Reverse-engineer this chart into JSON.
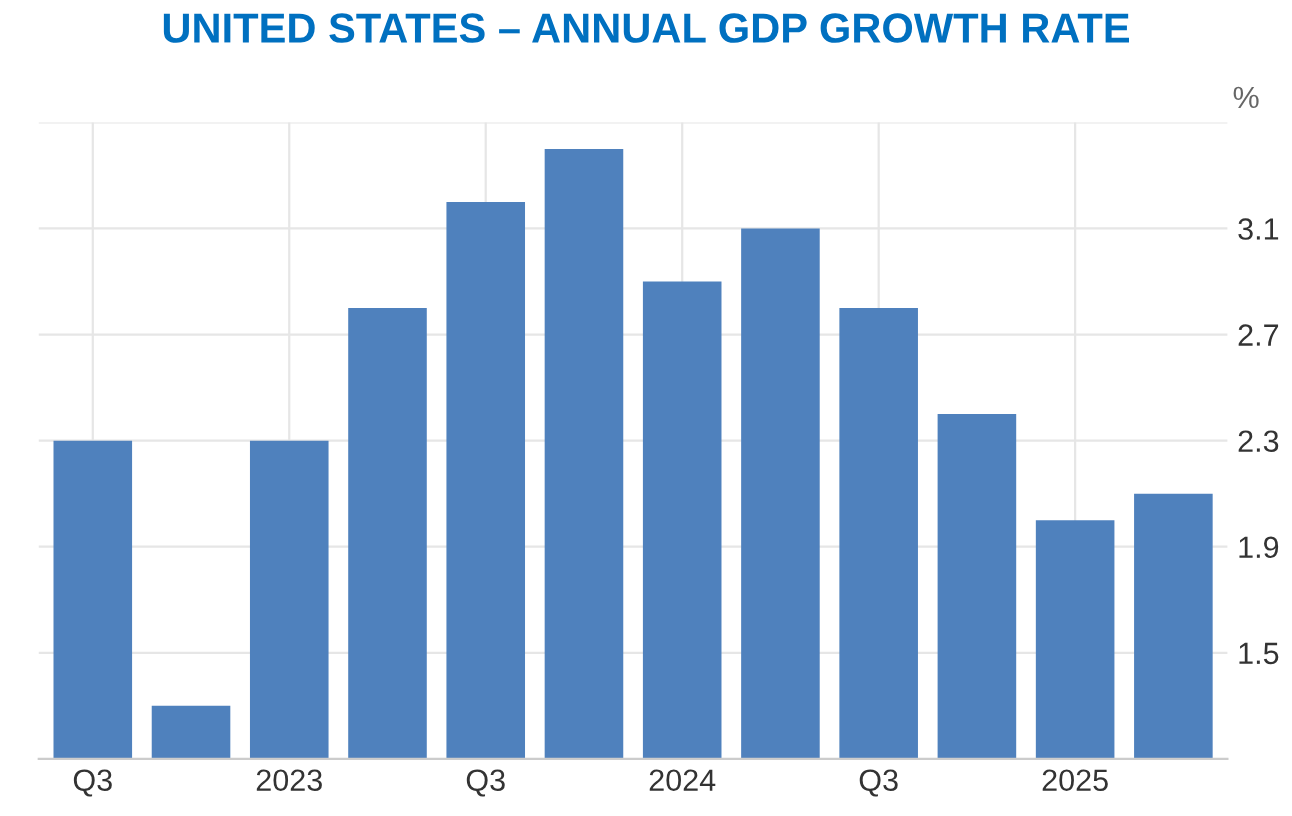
{
  "chart_data": {
    "type": "bar",
    "title": "UNITED STATES – ANNUAL GDP GROWTH RATE",
    "ylabel": "%",
    "categories": [
      "Q3",
      null,
      "2023",
      null,
      "Q3",
      null,
      "2024",
      null,
      "Q3",
      null,
      "2025",
      null
    ],
    "values": [
      2.3,
      1.3,
      2.3,
      2.8,
      3.2,
      3.4,
      2.9,
      3.1,
      2.8,
      2.4,
      2.0,
      2.1
    ],
    "color": "#4f81bd",
    "ylim": [
      1.1,
      3.5
    ],
    "yticks": [
      1.5,
      1.9,
      2.3,
      2.7,
      3.1,
      {
        "value": 3.5,
        "label": null
      }
    ],
    "grid": true,
    "legend": false
  }
}
